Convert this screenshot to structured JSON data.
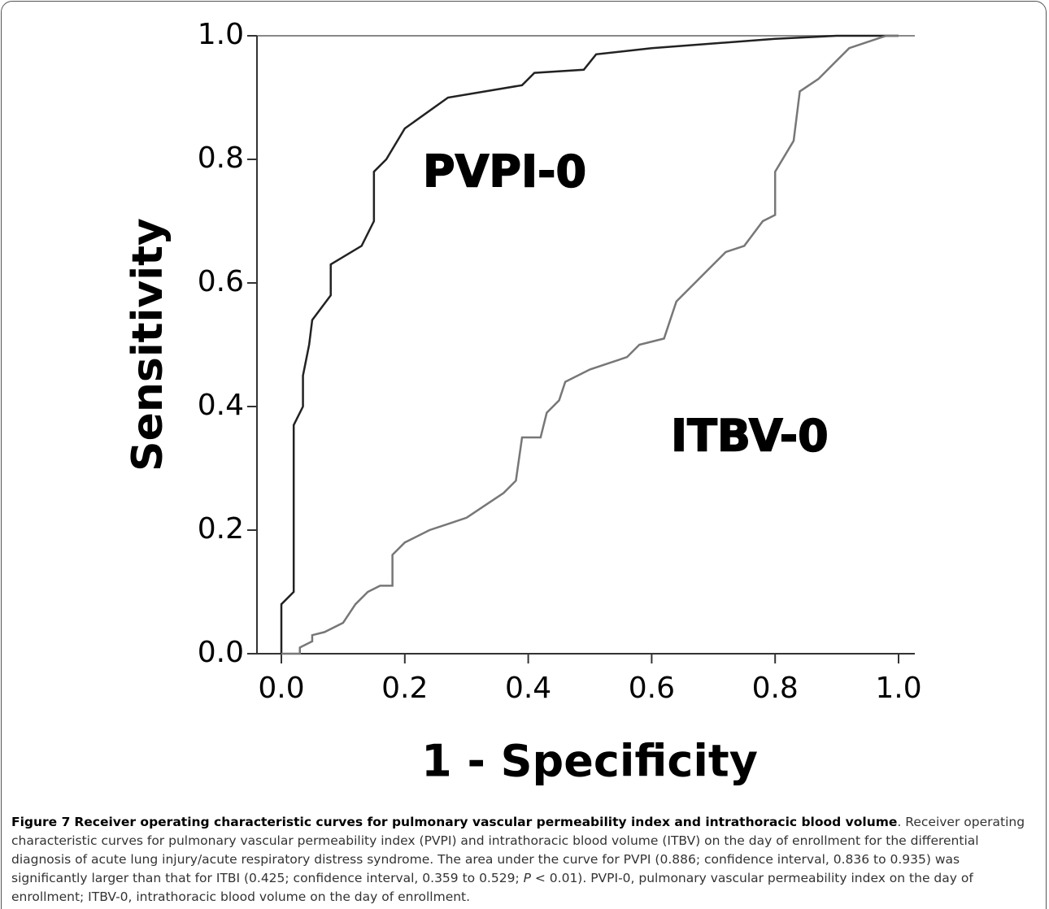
{
  "chart_data": {
    "type": "line",
    "xlabel": "1 - Specificity",
    "ylabel": "Sensitivity",
    "xlim": [
      0,
      1
    ],
    "ylim": [
      0,
      1
    ],
    "xticks": [
      {
        "value": 0,
        "label": "0.0"
      },
      {
        "value": 0.2,
        "label": "0.2"
      },
      {
        "value": 0.4,
        "label": "0.4"
      },
      {
        "value": 0.6,
        "label": "0.6"
      },
      {
        "value": 0.8,
        "label": "0.8"
      },
      {
        "value": 1,
        "label": "1.0"
      }
    ],
    "yticks": [
      {
        "value": 0,
        "label": "0.0"
      },
      {
        "value": 0.2,
        "label": "0.2"
      },
      {
        "value": 0.4,
        "label": "0.4"
      },
      {
        "value": 0.6,
        "label": "0.6"
      },
      {
        "value": 0.8,
        "label": "0.8"
      },
      {
        "value": 1,
        "label": "1.0"
      }
    ],
    "series": [
      {
        "name": "PVPI-0",
        "color": "#222222",
        "x": [
          0,
          0,
          0.02,
          0.02,
          0.035,
          0.035,
          0.045,
          0.05,
          0.08,
          0.08,
          0.13,
          0.15,
          0.15,
          0.17,
          0.2,
          0.27,
          0.39,
          0.41,
          0.49,
          0.51,
          0.6,
          0.8,
          0.9,
          1
        ],
        "values": [
          0,
          0.08,
          0.1,
          0.37,
          0.4,
          0.45,
          0.5,
          0.54,
          0.58,
          0.63,
          0.66,
          0.7,
          0.78,
          0.8,
          0.85,
          0.9,
          0.92,
          0.94,
          0.945,
          0.97,
          0.98,
          0.995,
          1,
          1
        ]
      },
      {
        "name": "ITBV-0",
        "color": "#777777",
        "x": [
          0,
          0.03,
          0.03,
          0.05,
          0.05,
          0.07,
          0.1,
          0.12,
          0.14,
          0.16,
          0.18,
          0.18,
          0.2,
          0.24,
          0.27,
          0.3,
          0.33,
          0.36,
          0.38,
          0.39,
          0.42,
          0.43,
          0.45,
          0.46,
          0.5,
          0.53,
          0.56,
          0.58,
          0.62,
          0.64,
          0.67,
          0.69,
          0.72,
          0.75,
          0.78,
          0.8,
          0.8,
          0.83,
          0.84,
          0.87,
          0.88,
          0.9,
          0.92,
          0.95,
          0.98,
          1
        ],
        "values": [
          0,
          0,
          0.01,
          0.02,
          0.03,
          0.035,
          0.05,
          0.08,
          0.1,
          0.11,
          0.11,
          0.16,
          0.18,
          0.2,
          0.21,
          0.22,
          0.24,
          0.26,
          0.28,
          0.35,
          0.35,
          0.39,
          0.41,
          0.44,
          0.46,
          0.47,
          0.48,
          0.5,
          0.51,
          0.57,
          0.6,
          0.62,
          0.65,
          0.66,
          0.7,
          0.71,
          0.78,
          0.83,
          0.91,
          0.93,
          0.94,
          0.96,
          0.98,
          0.99,
          1,
          1
        ]
      }
    ]
  },
  "caption": {
    "label": "Figure 7",
    "title": "Receiver operating characteristic curves for pulmonary vascular permeability index and intrathoracic blood volume",
    "body_start": ". Receiver operating characteristic curves for pulmonary vascular permeability index (PVPI) and intrathoracic blood volume (ITBV) on the day of enrollment for the differential diagnosis of acute lung injury/acute respiratory distress syndrome. The area under the curve for PVPI (0.886; confidence interval, 0.836 to 0.935) was significantly larger than that for ITBI (0.425; confidence interval, 0.359 to 0.529; ",
    "italic": "P",
    "body_end": " < 0.01). PVPI-0, pulmonary vascular permeability index on the day of enrollment; ITBV-0, intrathoracic blood volume on the day of enrollment."
  }
}
